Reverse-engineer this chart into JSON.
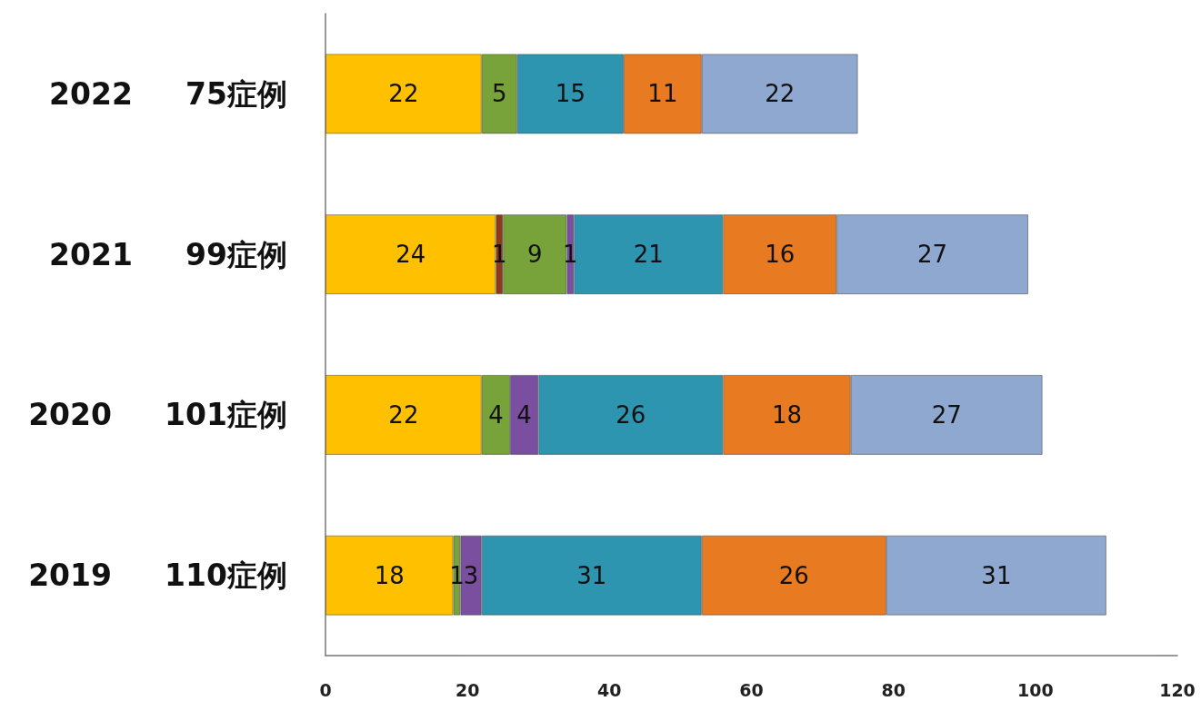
{
  "chart_data": {
    "type": "bar",
    "orientation": "horizontal",
    "stacked": true,
    "data_labels": true,
    "categories": [
      "2022 75症例",
      "2021 99症例",
      "2020 101症例",
      "2019 110症例"
    ],
    "series": [
      {
        "color": "#ffc000",
        "values": [
          22,
          24,
          22,
          18
        ]
      },
      {
        "color": "#8b3a1a",
        "values": [
          null,
          1,
          null,
          null
        ]
      },
      {
        "color": "#77a33a",
        "values": [
          5,
          9,
          4,
          1
        ]
      },
      {
        "color": "#7a4fa0",
        "values": [
          null,
          1,
          4,
          3
        ]
      },
      {
        "color": "#2e95b0",
        "values": [
          15,
          21,
          26,
          31
        ]
      },
      {
        "color": "#e87b22",
        "values": [
          11,
          16,
          18,
          26
        ]
      },
      {
        "color": "#8fa8d0",
        "values": [
          22,
          27,
          27,
          31
        ]
      }
    ],
    "xlim": [
      0,
      120
    ],
    "xticks": [
      0,
      20,
      40,
      60,
      80,
      100,
      120
    ]
  }
}
